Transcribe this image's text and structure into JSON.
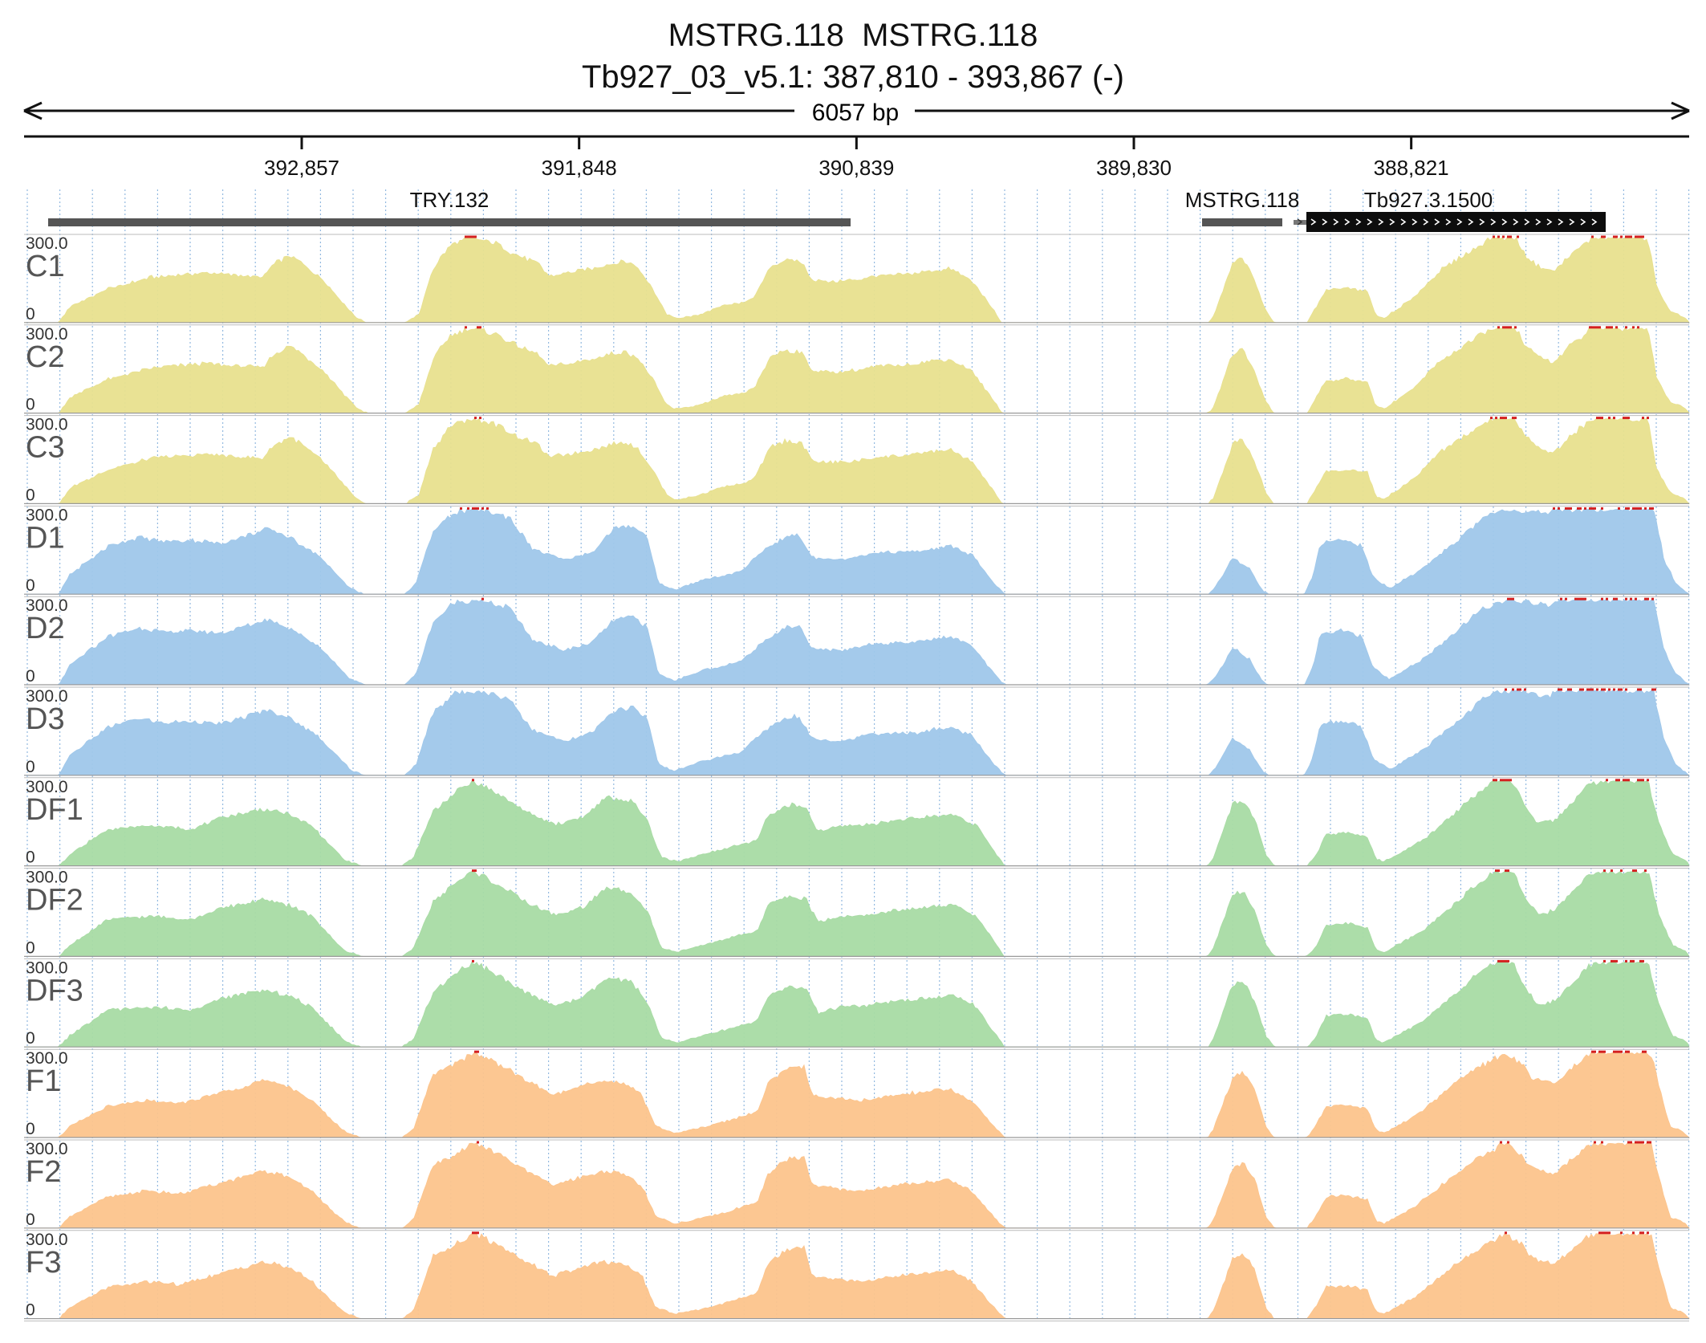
{
  "header": {
    "title_line1": "MSTRG.118  MSTRG.118",
    "title_line2": "Tb927_03_v5.1: 387,810 - 393,867 (-)",
    "span_label": "6057 bp"
  },
  "ruler": {
    "ticks": [
      "392,857",
      "391,848",
      "390,839",
      "389,830",
      "388,821"
    ]
  },
  "genes": [
    {
      "name": "TRY.132",
      "type": "plain"
    },
    {
      "name": "MSTRG.118",
      "type": "plain"
    },
    {
      "name": "Tb927.3.1500",
      "type": "cds-strand"
    }
  ],
  "colors": {
    "C": "#e8e08e",
    "D": "#9fc7ea",
    "DF": "#a8dba4",
    "F": "#fcc48c",
    "clip": "#d42020",
    "gene": "#555555",
    "gridline": "#6ea2d6"
  },
  "chart_data": {
    "type": "area",
    "title": "MSTRG.118  MSTRG.118",
    "region": "Tb927_03_v5.1: 387,810 - 393,867 (-)",
    "xlim": [
      393867,
      387810
    ],
    "ylim": [
      0,
      300
    ],
    "y_tick_labels": [
      "300.0",
      "0"
    ],
    "x_ticks": [
      392857,
      391848,
      390839,
      389830,
      388821
    ],
    "tracks": [
      {
        "name": "C1",
        "group": "C",
        "v": 1
      },
      {
        "name": "C2",
        "group": "C",
        "v": 2
      },
      {
        "name": "C3",
        "group": "C",
        "v": 3
      },
      {
        "name": "D1",
        "group": "D",
        "v": 4
      },
      {
        "name": "D2",
        "group": "D",
        "v": 5
      },
      {
        "name": "D3",
        "group": "D",
        "v": 6
      },
      {
        "name": "DF1",
        "group": "DF",
        "v": 7
      },
      {
        "name": "DF2",
        "group": "DF",
        "v": 8
      },
      {
        "name": "DF3",
        "group": "DF",
        "v": 9
      },
      {
        "name": "F1",
        "group": "F",
        "v": 10
      },
      {
        "name": "F2",
        "group": "F",
        "v": 11
      },
      {
        "name": "F3",
        "group": "F",
        "v": 12
      }
    ],
    "coverage_profiles": {
      "C": [
        [
          393740,
          0
        ],
        [
          393700,
          55
        ],
        [
          393560,
          120
        ],
        [
          393400,
          160
        ],
        [
          393200,
          175
        ],
        [
          393000,
          160
        ],
        [
          392960,
          205
        ],
        [
          392900,
          235
        ],
        [
          392870,
          220
        ],
        [
          392780,
          150
        ],
        [
          392660,
          20
        ],
        [
          392620,
          0
        ],
        [
          392480,
          0
        ],
        [
          392430,
          30
        ],
        [
          392380,
          190
        ],
        [
          392320,
          270
        ],
        [
          392250,
          300
        ],
        [
          392150,
          280
        ],
        [
          392080,
          240
        ],
        [
          392000,
          210
        ],
        [
          391960,
          165
        ],
        [
          391880,
          175
        ],
        [
          391800,
          190
        ],
        [
          391720,
          210
        ],
        [
          391680,
          215
        ],
        [
          391640,
          200
        ],
        [
          391580,
          120
        ],
        [
          391530,
          30
        ],
        [
          391500,
          15
        ],
        [
          391420,
          25
        ],
        [
          391320,
          60
        ],
        [
          391250,
          70
        ],
        [
          391210,
          90
        ],
        [
          391150,
          200
        ],
        [
          391100,
          220
        ],
        [
          391040,
          215
        ],
        [
          391000,
          150
        ],
        [
          390940,
          145
        ],
        [
          390840,
          150
        ],
        [
          390760,
          165
        ],
        [
          390650,
          170
        ],
        [
          390560,
          185
        ],
        [
          390500,
          190
        ],
        [
          390420,
          150
        ],
        [
          390330,
          30
        ],
        [
          390310,
          0
        ],
        [
          389560,
          0
        ],
        [
          389540,
          20
        ],
        [
          389470,
          210
        ],
        [
          389440,
          230
        ],
        [
          389400,
          170
        ],
        [
          389350,
          40
        ],
        [
          389320,
          0
        ],
        [
          389200,
          0
        ],
        [
          389170,
          50
        ],
        [
          389130,
          115
        ],
        [
          389060,
          120
        ],
        [
          388980,
          110
        ],
        [
          388950,
          25
        ],
        [
          388920,
          15
        ],
        [
          388810,
          90
        ],
        [
          388720,
          180
        ],
        [
          388640,
          230
        ],
        [
          388590,
          260
        ],
        [
          388530,
          300
        ],
        [
          388440,
          300
        ],
        [
          388410,
          240
        ],
        [
          388360,
          200
        ],
        [
          388300,
          180
        ],
        [
          388240,
          240
        ],
        [
          388200,
          270
        ],
        [
          388160,
          300
        ],
        [
          387960,
          300
        ],
        [
          387930,
          130
        ],
        [
          387880,
          40
        ],
        [
          387830,
          20
        ],
        [
          387810,
          0
        ]
      ],
      "D": [
        [
          393740,
          0
        ],
        [
          393700,
          70
        ],
        [
          393560,
          170
        ],
        [
          393450,
          200
        ],
        [
          393360,
          185
        ],
        [
          393260,
          190
        ],
        [
          393150,
          180
        ],
        [
          392980,
          230
        ],
        [
          392900,
          200
        ],
        [
          392800,
          140
        ],
        [
          392680,
          20
        ],
        [
          392630,
          0
        ],
        [
          392480,
          0
        ],
        [
          392440,
          40
        ],
        [
          392380,
          220
        ],
        [
          392300,
          290
        ],
        [
          392220,
          300
        ],
        [
          392100,
          270
        ],
        [
          392020,
          160
        ],
        [
          391900,
          120
        ],
        [
          391800,
          150
        ],
        [
          391720,
          230
        ],
        [
          391650,
          240
        ],
        [
          391600,
          200
        ],
        [
          391560,
          40
        ],
        [
          391500,
          15
        ],
        [
          391400,
          50
        ],
        [
          391260,
          80
        ],
        [
          391170,
          160
        ],
        [
          391100,
          200
        ],
        [
          391050,
          210
        ],
        [
          391000,
          130
        ],
        [
          390900,
          120
        ],
        [
          390780,
          145
        ],
        [
          390620,
          150
        ],
        [
          390500,
          170
        ],
        [
          390420,
          140
        ],
        [
          390340,
          40
        ],
        [
          390300,
          0
        ],
        [
          389560,
          0
        ],
        [
          389530,
          30
        ],
        [
          389470,
          130
        ],
        [
          389410,
          90
        ],
        [
          389360,
          10
        ],
        [
          389340,
          0
        ],
        [
          389210,
          0
        ],
        [
          389180,
          60
        ],
        [
          389150,
          180
        ],
        [
          389070,
          190
        ],
        [
          389000,
          170
        ],
        [
          388960,
          60
        ],
        [
          388900,
          20
        ],
        [
          388780,
          90
        ],
        [
          388640,
          200
        ],
        [
          388560,
          270
        ],
        [
          388480,
          300
        ],
        [
          388320,
          280
        ],
        [
          388290,
          300
        ],
        [
          388240,
          300
        ],
        [
          387940,
          300
        ],
        [
          387900,
          120
        ],
        [
          387860,
          40
        ],
        [
          387810,
          0
        ]
      ],
      "DF": [
        [
          393740,
          0
        ],
        [
          393700,
          40
        ],
        [
          393560,
          130
        ],
        [
          393400,
          140
        ],
        [
          393250,
          130
        ],
        [
          393150,
          170
        ],
        [
          393000,
          200
        ],
        [
          392900,
          180
        ],
        [
          392820,
          140
        ],
        [
          392700,
          20
        ],
        [
          392640,
          0
        ],
        [
          392490,
          0
        ],
        [
          392450,
          30
        ],
        [
          392380,
          190
        ],
        [
          392300,
          260
        ],
        [
          392230,
          300
        ],
        [
          392120,
          240
        ],
        [
          392020,
          180
        ],
        [
          391930,
          145
        ],
        [
          391830,
          175
        ],
        [
          391750,
          240
        ],
        [
          391660,
          230
        ],
        [
          391600,
          160
        ],
        [
          391550,
          30
        ],
        [
          391490,
          15
        ],
        [
          391400,
          40
        ],
        [
          391280,
          70
        ],
        [
          391200,
          90
        ],
        [
          391160,
          180
        ],
        [
          391080,
          215
        ],
        [
          391020,
          200
        ],
        [
          390980,
          120
        ],
        [
          390900,
          140
        ],
        [
          390800,
          145
        ],
        [
          390700,
          160
        ],
        [
          390560,
          175
        ],
        [
          390480,
          180
        ],
        [
          390400,
          140
        ],
        [
          390330,
          40
        ],
        [
          390300,
          0
        ],
        [
          389560,
          0
        ],
        [
          389540,
          30
        ],
        [
          389470,
          220
        ],
        [
          389430,
          230
        ],
        [
          389390,
          160
        ],
        [
          389350,
          40
        ],
        [
          389320,
          0
        ],
        [
          389200,
          0
        ],
        [
          389170,
          30
        ],
        [
          389130,
          110
        ],
        [
          389050,
          115
        ],
        [
          388980,
          100
        ],
        [
          388950,
          25
        ],
        [
          388920,
          15
        ],
        [
          388780,
          90
        ],
        [
          388680,
          170
        ],
        [
          388600,
          240
        ],
        [
          388520,
          300
        ],
        [
          388450,
          300
        ],
        [
          388410,
          210
        ],
        [
          388360,
          150
        ],
        [
          388300,
          160
        ],
        [
          388240,
          220
        ],
        [
          388180,
          280
        ],
        [
          388140,
          300
        ],
        [
          387960,
          300
        ],
        [
          387920,
          150
        ],
        [
          387870,
          40
        ],
        [
          387820,
          20
        ],
        [
          387810,
          0
        ]
      ],
      "F": [
        [
          393740,
          0
        ],
        [
          393700,
          40
        ],
        [
          393560,
          110
        ],
        [
          393420,
          130
        ],
        [
          393300,
          120
        ],
        [
          393180,
          150
        ],
        [
          393000,
          200
        ],
        [
          392900,
          180
        ],
        [
          392820,
          130
        ],
        [
          392700,
          20
        ],
        [
          392640,
          0
        ],
        [
          392490,
          0
        ],
        [
          392450,
          30
        ],
        [
          392380,
          220
        ],
        [
          392300,
          260
        ],
        [
          392230,
          300
        ],
        [
          392120,
          250
        ],
        [
          392040,
          200
        ],
        [
          391940,
          150
        ],
        [
          391840,
          180
        ],
        [
          391760,
          200
        ],
        [
          391680,
          190
        ],
        [
          391620,
          150
        ],
        [
          391570,
          40
        ],
        [
          391500,
          15
        ],
        [
          391420,
          30
        ],
        [
          391300,
          60
        ],
        [
          391200,
          90
        ],
        [
          391160,
          190
        ],
        [
          391100,
          240
        ],
        [
          391030,
          250
        ],
        [
          391000,
          150
        ],
        [
          390920,
          140
        ],
        [
          390820,
          130
        ],
        [
          390700,
          150
        ],
        [
          390600,
          160
        ],
        [
          390500,
          170
        ],
        [
          390420,
          130
        ],
        [
          390340,
          40
        ],
        [
          390300,
          0
        ],
        [
          389560,
          0
        ],
        [
          389540,
          30
        ],
        [
          389470,
          210
        ],
        [
          389430,
          230
        ],
        [
          389390,
          170
        ],
        [
          389350,
          40
        ],
        [
          389320,
          0
        ],
        [
          389200,
          0
        ],
        [
          389170,
          40
        ],
        [
          389130,
          110
        ],
        [
          389050,
          115
        ],
        [
          388980,
          100
        ],
        [
          388950,
          25
        ],
        [
          388920,
          15
        ],
        [
          388800,
          80
        ],
        [
          388700,
          160
        ],
        [
          388620,
          220
        ],
        [
          388550,
          260
        ],
        [
          388480,
          300
        ],
        [
          388420,
          260
        ],
        [
          388380,
          210
        ],
        [
          388300,
          190
        ],
        [
          388240,
          240
        ],
        [
          388180,
          290
        ],
        [
          388150,
          300
        ],
        [
          387950,
          300
        ],
        [
          387920,
          180
        ],
        [
          387880,
          40
        ],
        [
          387830,
          20
        ],
        [
          387810,
          0
        ]
      ]
    }
  }
}
